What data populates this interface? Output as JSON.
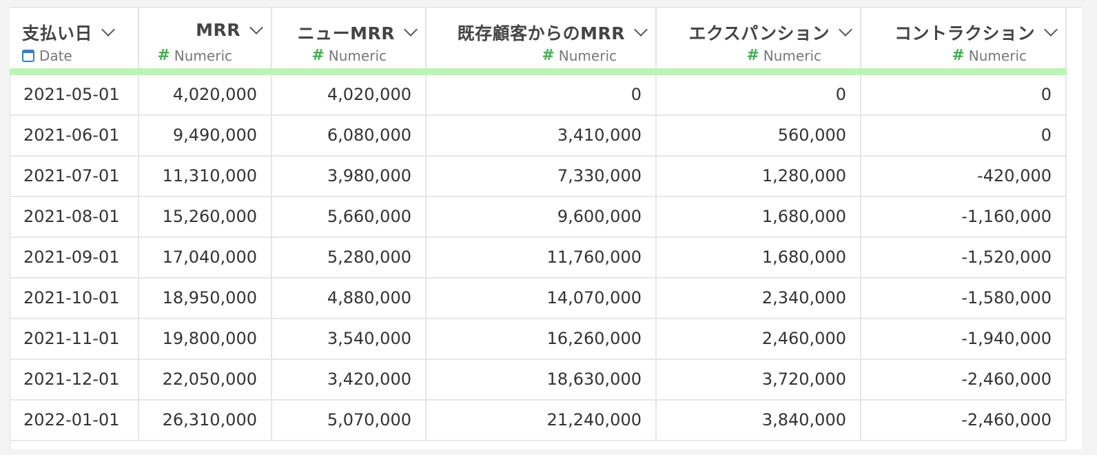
{
  "table": {
    "columns": [
      {
        "title": "支払い日",
        "type": "Date",
        "type_icon": "calendar-icon"
      },
      {
        "title": "MRR",
        "type": "Numeric",
        "type_icon": "hash-icon"
      },
      {
        "title": "ニューMRR",
        "type": "Numeric",
        "type_icon": "hash-icon"
      },
      {
        "title": "既存顧客からのMRR",
        "type": "Numeric",
        "type_icon": "hash-icon"
      },
      {
        "title": "エクスパンション",
        "type": "Numeric",
        "type_icon": "hash-icon"
      },
      {
        "title": "コントラクション",
        "type": "Numeric",
        "type_icon": "hash-icon"
      }
    ],
    "rows": [
      [
        "2021-05-01",
        "4,020,000",
        "4,020,000",
        "0",
        "0",
        "0"
      ],
      [
        "2021-06-01",
        "9,490,000",
        "6,080,000",
        "3,410,000",
        "560,000",
        "0"
      ],
      [
        "2021-07-01",
        "11,310,000",
        "3,980,000",
        "7,330,000",
        "1,280,000",
        "-420,000"
      ],
      [
        "2021-08-01",
        "15,260,000",
        "5,660,000",
        "9,600,000",
        "1,680,000",
        "-1,160,000"
      ],
      [
        "2021-09-01",
        "17,040,000",
        "5,280,000",
        "11,760,000",
        "1,680,000",
        "-1,520,000"
      ],
      [
        "2021-10-01",
        "18,950,000",
        "4,880,000",
        "14,070,000",
        "2,340,000",
        "-1,580,000"
      ],
      [
        "2021-11-01",
        "19,800,000",
        "3,540,000",
        "16,260,000",
        "2,460,000",
        "-1,940,000"
      ],
      [
        "2021-12-01",
        "22,050,000",
        "3,420,000",
        "18,630,000",
        "3,720,000",
        "-2,460,000"
      ],
      [
        "2022-01-01",
        "26,310,000",
        "5,070,000",
        "21,240,000",
        "3,840,000",
        "-2,460,000"
      ]
    ]
  },
  "colors": {
    "header_accent": "#b9f5b4",
    "numeric_icon": "#3cb54a",
    "date_icon": "#2f7fd2"
  }
}
